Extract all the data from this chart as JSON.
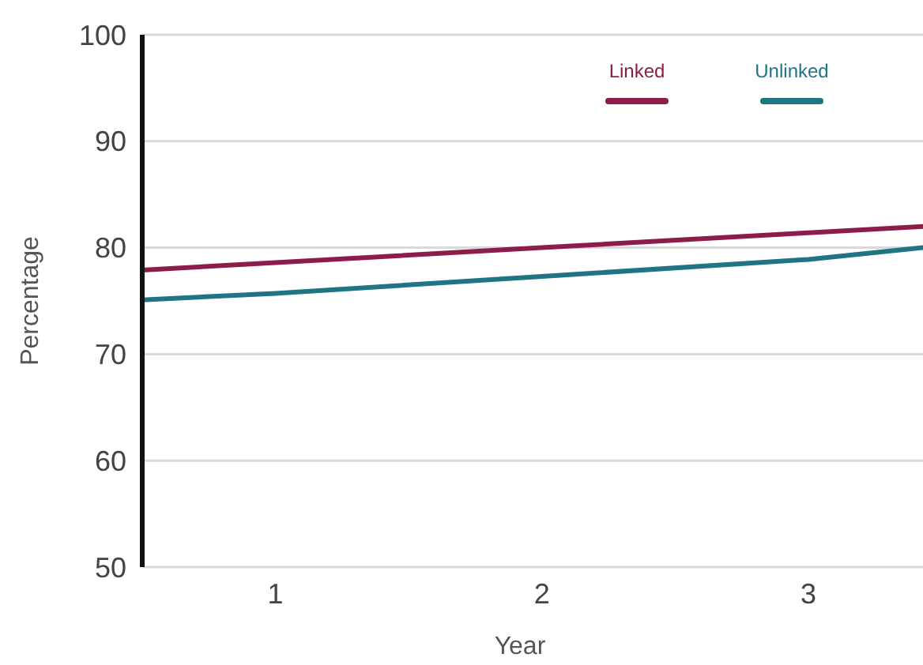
{
  "chart_data": {
    "type": "line",
    "xlabel": "Year",
    "ylabel": "Percentage",
    "x": [
      0.5,
      1,
      2,
      3,
      3.43
    ],
    "xlim": [
      0.5,
      3.43
    ],
    "xticks": [
      1,
      2,
      3
    ],
    "ylim": [
      50,
      100
    ],
    "yticks": [
      50,
      60,
      70,
      80,
      90,
      100
    ],
    "grid": "y",
    "legend": "top right",
    "marker": "none",
    "line_style": "solid",
    "series": [
      {
        "name": "Linked",
        "color": "#8c1d4a",
        "values": [
          77.9,
          78.6,
          80,
          81.4,
          82
        ]
      },
      {
        "name": "Unlinked",
        "color": "#1f7584",
        "values": [
          75.1,
          75.7,
          77.3,
          78.9,
          80
        ]
      }
    ]
  }
}
